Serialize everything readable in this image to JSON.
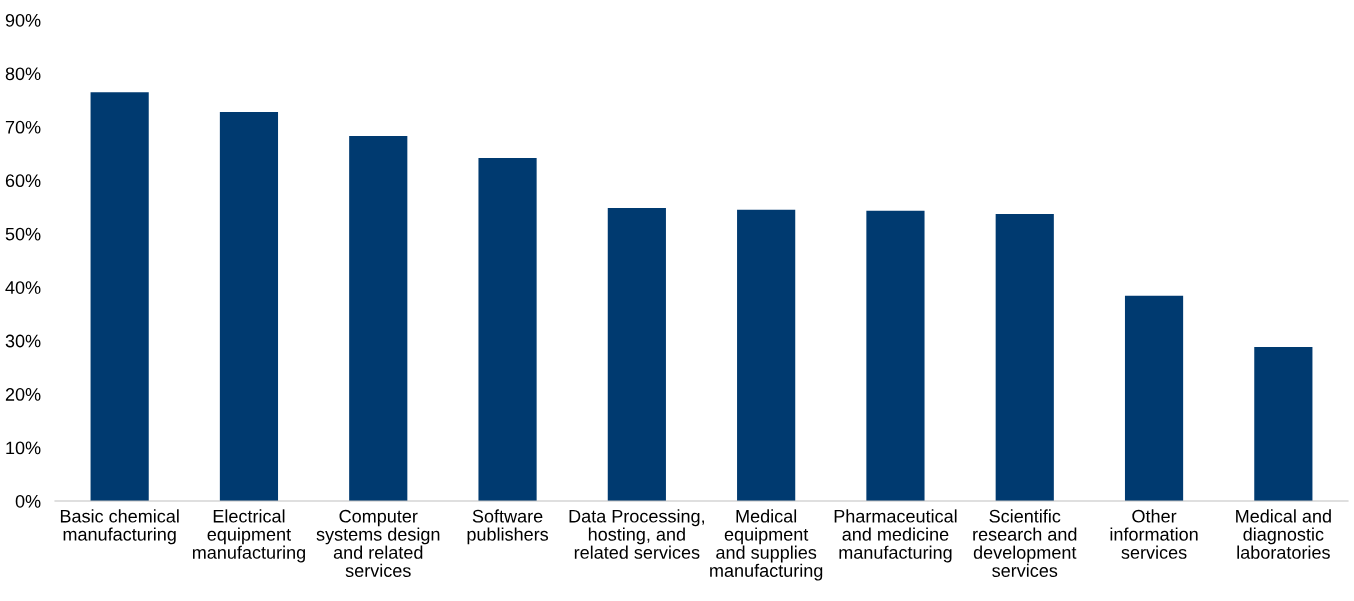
{
  "chart_data": {
    "type": "bar",
    "categories": [
      "Basic chemical\nmanufacturing",
      "Electrical\nequipment\nmanufacturing",
      "Computer\nsystems design\nand related\nservices",
      "Software\npublishers",
      "Data Processing,\nhosting, and\nrelated services",
      "Medical\nequipment\nand supplies\nmanufacturing",
      "Pharmaceutical\nand medicine\nmanufacturing",
      "Scientific\nresearch and\ndevelopment\nservices",
      "Other\ninformation\nservices",
      "Medical and\ndiagnostic\nlaboratories"
    ],
    "values": [
      76.5,
      72.8,
      68.3,
      64.2,
      54.8,
      54.5,
      54.3,
      53.7,
      38.4,
      28.8
    ],
    "color": "#003a70",
    "ylim": [
      0,
      90
    ],
    "yticks": [
      {
        "value": 0,
        "label": "0%"
      },
      {
        "value": 10,
        "label": "10%"
      },
      {
        "value": 20,
        "label": "20%"
      },
      {
        "value": 30,
        "label": "30%"
      },
      {
        "value": 40,
        "label": "40%"
      },
      {
        "value": 50,
        "label": "50%"
      },
      {
        "value": 60,
        "label": "60%"
      },
      {
        "value": 70,
        "label": "70%"
      },
      {
        "value": 80,
        "label": "80%"
      },
      {
        "value": 90,
        "label": "90%"
      }
    ],
    "grid": false
  }
}
